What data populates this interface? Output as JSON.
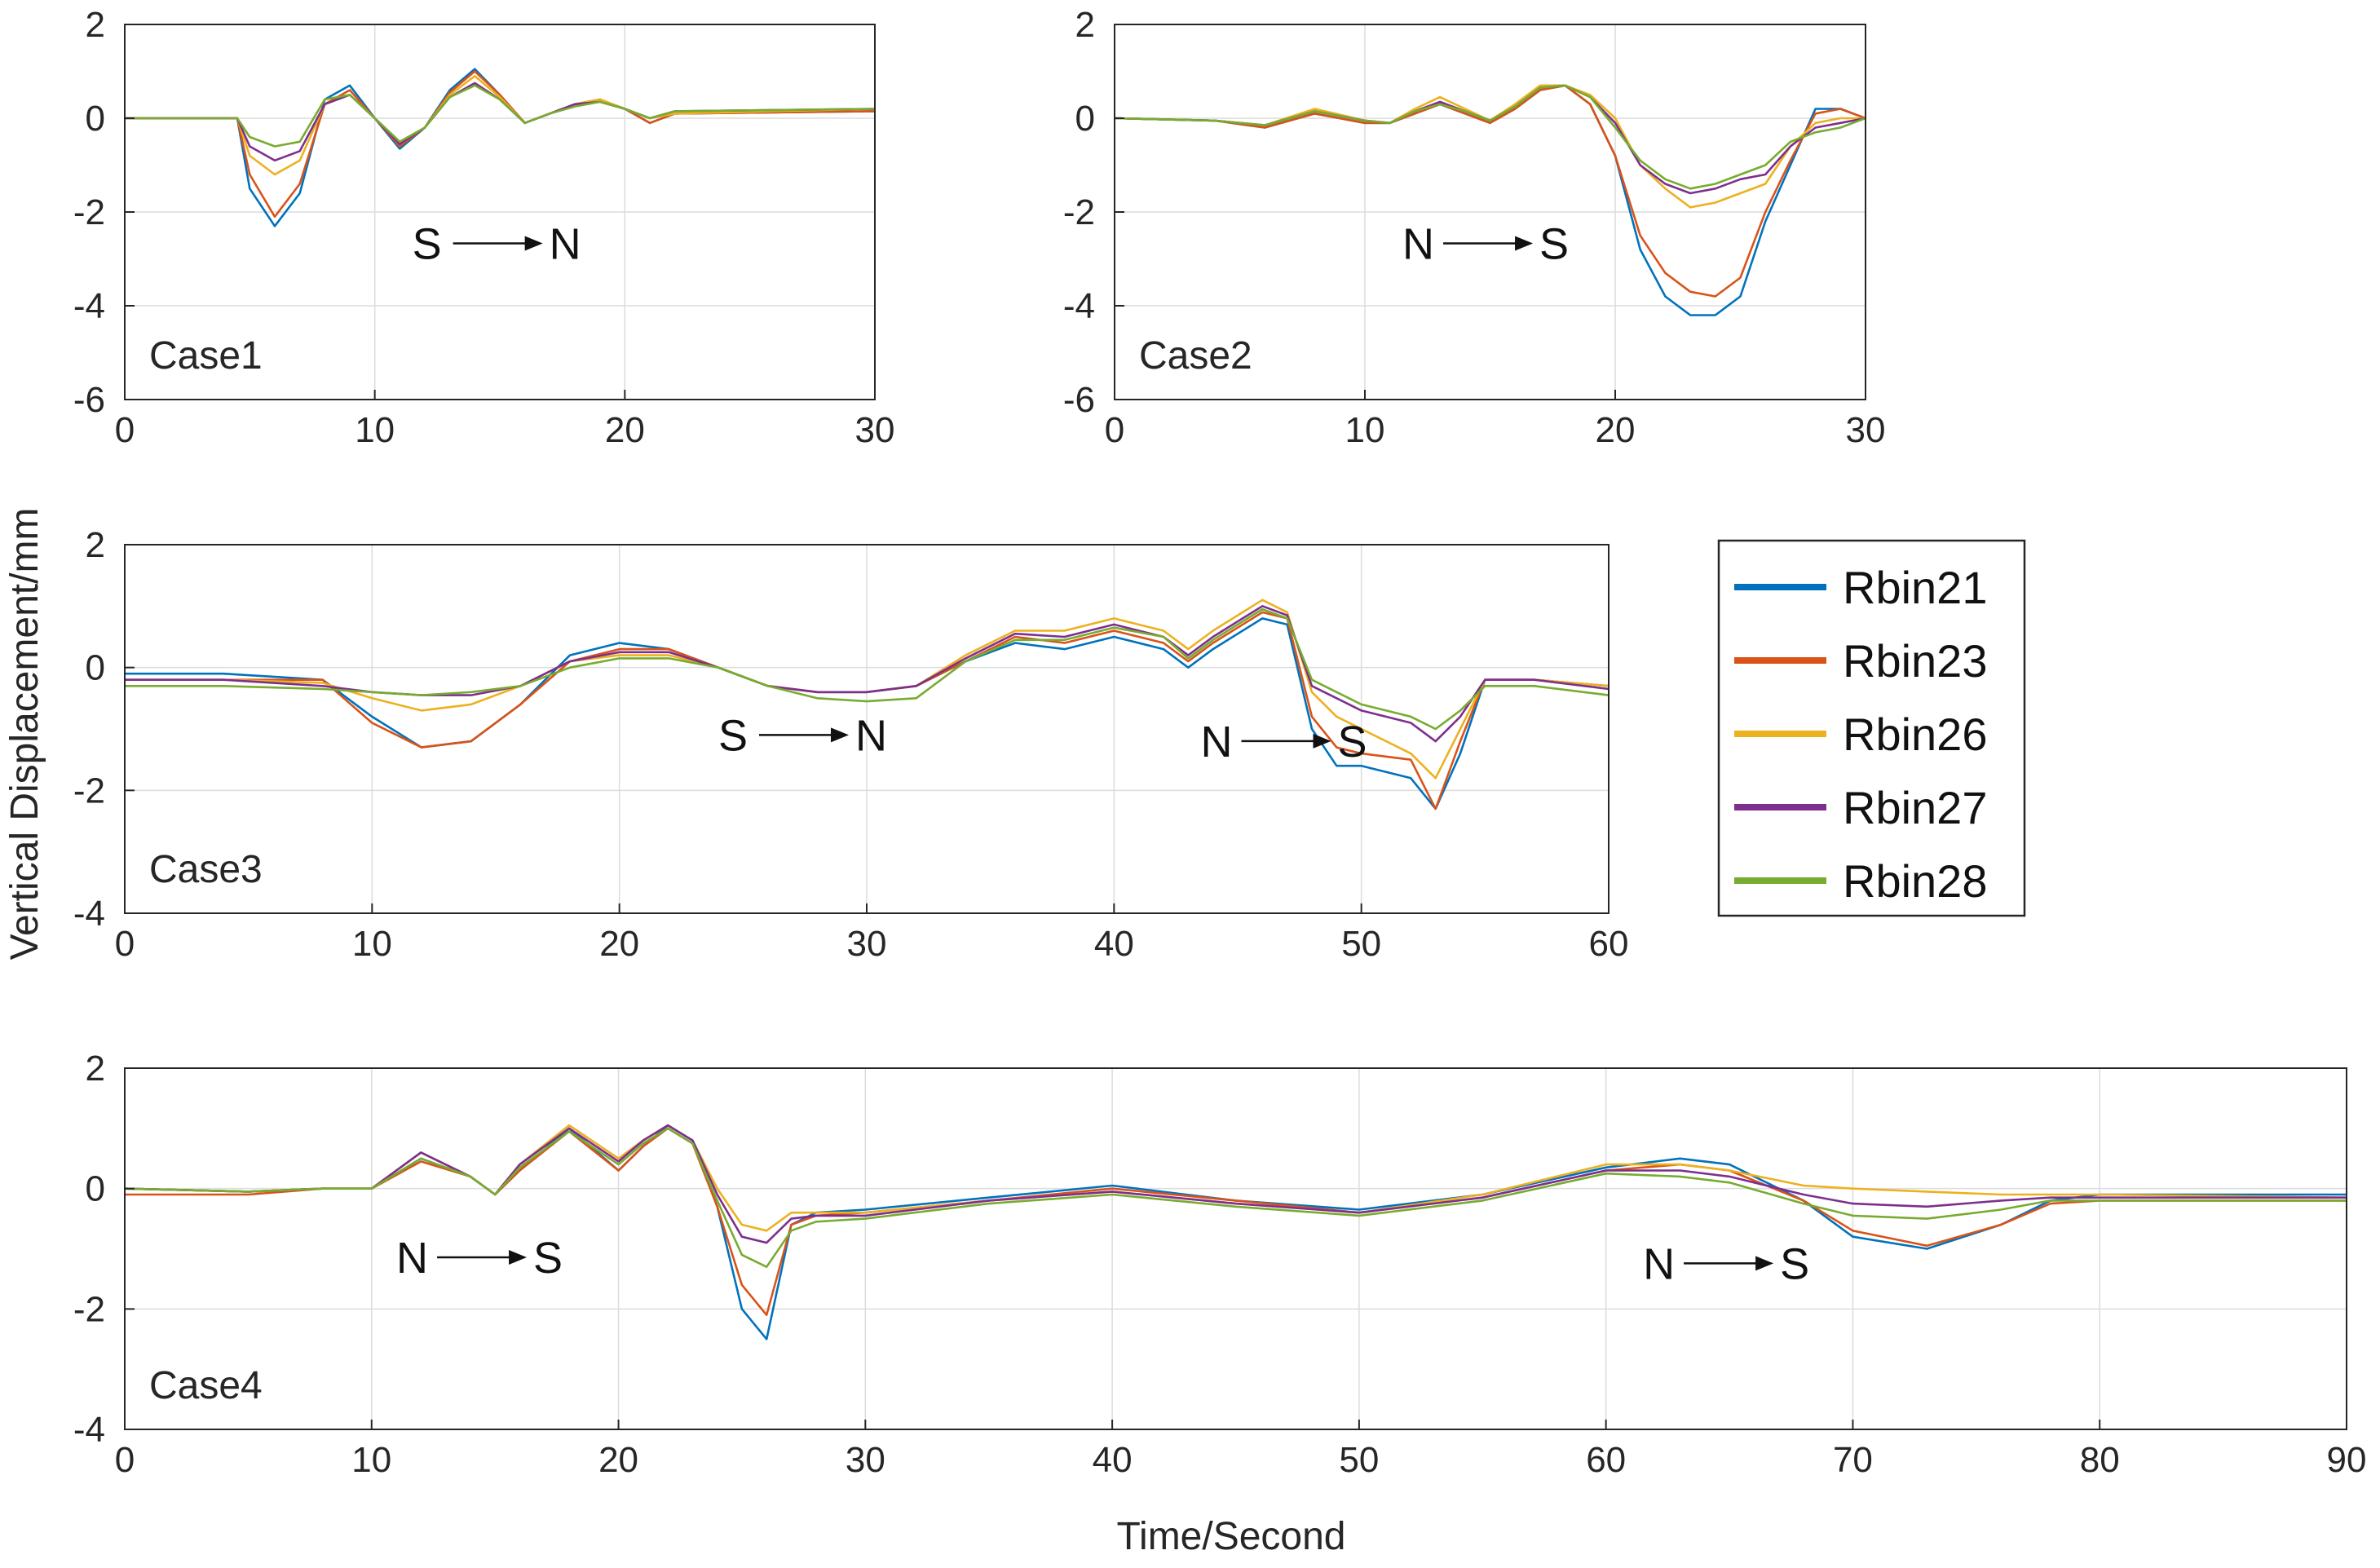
{
  "figure": {
    "ylabel": "Vertical Displacement/mm",
    "xlabel": "Time/Second"
  },
  "chart_data": [
    {
      "type": "line",
      "case_label": "Case1",
      "xlim": [
        0,
        30
      ],
      "ylim": [
        -6,
        2
      ],
      "xticks": [
        0,
        10,
        20,
        30
      ],
      "yticks": [
        -6,
        -4,
        -2,
        0,
        2
      ],
      "grid": true,
      "annotations": [
        {
          "from": "S",
          "to": "N",
          "x": 11.5,
          "y": -3.0
        }
      ],
      "x": [
        0,
        4.5,
        5,
        6,
        7,
        8,
        9,
        10,
        11,
        12,
        13,
        14,
        15,
        16,
        17,
        18,
        19,
        20,
        21,
        22,
        30
      ],
      "series": [
        {
          "name": "Rbin21",
          "values": [
            0,
            0,
            -1.5,
            -2.3,
            -1.6,
            0.4,
            0.7,
            0.0,
            -0.65,
            -0.2,
            0.6,
            1.05,
            0.5,
            -0.1,
            0.1,
            0.3,
            0.4,
            0.2,
            -0.1,
            0.1,
            0.15
          ]
        },
        {
          "name": "Rbin23",
          "values": [
            0,
            0,
            -1.2,
            -2.1,
            -1.4,
            0.3,
            0.6,
            0.0,
            -0.6,
            -0.2,
            0.55,
            1.0,
            0.5,
            -0.1,
            0.1,
            0.3,
            0.4,
            0.2,
            -0.1,
            0.1,
            0.15
          ]
        },
        {
          "name": "Rbin26",
          "values": [
            0,
            0,
            -0.8,
            -1.2,
            -0.9,
            0.3,
            0.5,
            0.0,
            -0.5,
            -0.2,
            0.5,
            0.9,
            0.45,
            -0.1,
            0.1,
            0.3,
            0.4,
            0.2,
            0.0,
            0.1,
            0.2
          ]
        },
        {
          "name": "Rbin27",
          "values": [
            0,
            0,
            -0.6,
            -0.9,
            -0.7,
            0.3,
            0.5,
            0.0,
            -0.55,
            -0.2,
            0.45,
            0.75,
            0.4,
            -0.1,
            0.1,
            0.3,
            0.35,
            0.2,
            0.0,
            0.15,
            0.2
          ]
        },
        {
          "name": "Rbin28",
          "values": [
            0,
            0,
            -0.4,
            -0.6,
            -0.5,
            0.4,
            0.5,
            0.0,
            -0.5,
            -0.2,
            0.45,
            0.7,
            0.4,
            -0.1,
            0.1,
            0.25,
            0.35,
            0.2,
            0.0,
            0.15,
            0.2
          ]
        }
      ]
    },
    {
      "type": "line",
      "case_label": "Case2",
      "xlim": [
        0,
        30
      ],
      "ylim": [
        -6,
        2
      ],
      "xticks": [
        0,
        10,
        20,
        30
      ],
      "yticks": [
        -6,
        -4,
        -2,
        0,
        2
      ],
      "grid": true,
      "annotations": [
        {
          "from": "N",
          "to": "S",
          "x": 11.5,
          "y": -3.0
        }
      ],
      "x": [
        0,
        4,
        6,
        8,
        10,
        11,
        12,
        13,
        14,
        15,
        16,
        17,
        18,
        19,
        20,
        21,
        22,
        23,
        24,
        25,
        26,
        27,
        28,
        29,
        30
      ],
      "series": [
        {
          "name": "Rbin21",
          "values": [
            0,
            -0.05,
            -0.2,
            0.1,
            -0.1,
            -0.1,
            0.1,
            0.3,
            0.1,
            -0.1,
            0.2,
            0.6,
            0.7,
            0.3,
            -0.8,
            -2.8,
            -3.8,
            -4.2,
            -4.2,
            -3.8,
            -2.2,
            -1.0,
            0.2,
            0.2,
            0.0
          ]
        },
        {
          "name": "Rbin23",
          "values": [
            0,
            -0.05,
            -0.2,
            0.1,
            -0.1,
            -0.1,
            0.1,
            0.3,
            0.1,
            -0.1,
            0.2,
            0.6,
            0.7,
            0.3,
            -0.8,
            -2.5,
            -3.3,
            -3.7,
            -3.8,
            -3.4,
            -2.0,
            -0.9,
            0.1,
            0.2,
            0.0
          ]
        },
        {
          "name": "Rbin26",
          "values": [
            0,
            -0.05,
            -0.15,
            0.2,
            -0.05,
            -0.1,
            0.2,
            0.45,
            0.2,
            -0.05,
            0.3,
            0.7,
            0.7,
            0.5,
            0.0,
            -1.0,
            -1.5,
            -1.9,
            -1.8,
            -1.6,
            -1.4,
            -0.6,
            -0.1,
            0.0,
            0.0
          ]
        },
        {
          "name": "Rbin27",
          "values": [
            0,
            -0.05,
            -0.15,
            0.15,
            -0.05,
            -0.1,
            0.15,
            0.35,
            0.15,
            -0.05,
            0.25,
            0.65,
            0.7,
            0.45,
            -0.1,
            -1.0,
            -1.4,
            -1.6,
            -1.5,
            -1.3,
            -1.2,
            -0.6,
            -0.2,
            -0.1,
            0.0
          ]
        },
        {
          "name": "Rbin28",
          "values": [
            0,
            -0.05,
            -0.15,
            0.15,
            -0.05,
            -0.1,
            0.15,
            0.3,
            0.15,
            -0.05,
            0.25,
            0.65,
            0.7,
            0.45,
            -0.2,
            -0.9,
            -1.3,
            -1.5,
            -1.4,
            -1.2,
            -1.0,
            -0.5,
            -0.3,
            -0.2,
            0.0
          ]
        }
      ]
    },
    {
      "type": "line",
      "case_label": "Case3",
      "xlim": [
        0,
        60
      ],
      "ylim": [
        -4,
        2
      ],
      "xticks": [
        0,
        10,
        20,
        30,
        40,
        50,
        60
      ],
      "yticks": [
        -4,
        -2,
        0,
        2
      ],
      "grid": true,
      "annotations": [
        {
          "from": "S",
          "to": "N",
          "x": 24.0,
          "y": -1.35
        },
        {
          "from": "N",
          "to": "S",
          "x": 43.5,
          "y": -1.45
        }
      ],
      "x": [
        0,
        4,
        8,
        10,
        12,
        14,
        16,
        18,
        20,
        22,
        24,
        26,
        28,
        30,
        32,
        34,
        36,
        38,
        40,
        42,
        43,
        44,
        46,
        47,
        48,
        49,
        50,
        52,
        53,
        54,
        55,
        57,
        60
      ],
      "series": [
        {
          "name": "Rbin21",
          "values": [
            -0.1,
            -0.1,
            -0.2,
            -0.8,
            -1.3,
            -1.2,
            -0.6,
            0.2,
            0.4,
            0.3,
            0.0,
            -0.3,
            -0.4,
            -0.4,
            -0.3,
            0.1,
            0.4,
            0.3,
            0.5,
            0.3,
            0.0,
            0.3,
            0.8,
            0.7,
            -1.0,
            -1.6,
            -1.6,
            -1.8,
            -2.3,
            -1.4,
            -0.2,
            -0.2,
            -0.3
          ]
        },
        {
          "name": "Rbin23",
          "values": [
            -0.2,
            -0.2,
            -0.2,
            -0.9,
            -1.3,
            -1.2,
            -0.6,
            0.1,
            0.3,
            0.3,
            0.0,
            -0.3,
            -0.4,
            -0.4,
            -0.3,
            0.1,
            0.5,
            0.4,
            0.6,
            0.4,
            0.1,
            0.4,
            0.9,
            0.8,
            -0.8,
            -1.3,
            -1.4,
            -1.5,
            -2.3,
            -1.2,
            -0.2,
            -0.2,
            -0.3
          ]
        },
        {
          "name": "Rbin26",
          "values": [
            -0.2,
            -0.2,
            -0.25,
            -0.5,
            -0.7,
            -0.6,
            -0.3,
            0.1,
            0.2,
            0.2,
            0.0,
            -0.3,
            -0.4,
            -0.4,
            -0.3,
            0.2,
            0.6,
            0.6,
            0.8,
            0.6,
            0.3,
            0.6,
            1.1,
            0.9,
            -0.4,
            -0.8,
            -1.0,
            -1.4,
            -1.8,
            -1.0,
            -0.2,
            -0.2,
            -0.3
          ]
        },
        {
          "name": "Rbin27",
          "values": [
            -0.2,
            -0.2,
            -0.3,
            -0.4,
            -0.45,
            -0.45,
            -0.3,
            0.1,
            0.25,
            0.25,
            0.0,
            -0.3,
            -0.4,
            -0.4,
            -0.3,
            0.15,
            0.55,
            0.5,
            0.7,
            0.5,
            0.2,
            0.5,
            1.0,
            0.85,
            -0.3,
            -0.5,
            -0.7,
            -0.9,
            -1.2,
            -0.8,
            -0.2,
            -0.2,
            -0.35
          ]
        },
        {
          "name": "Rbin28",
          "values": [
            -0.3,
            -0.3,
            -0.35,
            -0.4,
            -0.45,
            -0.4,
            -0.3,
            0.0,
            0.15,
            0.15,
            0.0,
            -0.3,
            -0.5,
            -0.55,
            -0.5,
            0.1,
            0.45,
            0.45,
            0.65,
            0.5,
            0.15,
            0.45,
            0.95,
            0.8,
            -0.2,
            -0.4,
            -0.6,
            -0.8,
            -1.0,
            -0.7,
            -0.3,
            -0.3,
            -0.45
          ]
        }
      ]
    },
    {
      "type": "line",
      "case_label": "Case4",
      "xlim": [
        0,
        90
      ],
      "ylim": [
        -4,
        2
      ],
      "xticks": [
        0,
        10,
        20,
        30,
        40,
        50,
        60,
        70,
        80,
        90
      ],
      "yticks": [
        -4,
        -2,
        0,
        2
      ],
      "grid": true,
      "annotations": [
        {
          "from": "N",
          "to": "S",
          "x": 11.0,
          "y": -1.4
        },
        {
          "from": "N",
          "to": "S",
          "x": 61.5,
          "y": -1.5
        }
      ],
      "x": [
        0,
        5,
        8,
        10,
        12,
        14,
        15,
        16,
        18,
        20,
        21,
        22,
        23,
        24,
        25,
        26,
        27,
        28,
        30,
        35,
        40,
        45,
        50,
        55,
        60,
        63,
        65,
        68,
        70,
        73,
        76,
        78,
        80,
        90
      ],
      "series": [
        {
          "name": "Rbin21",
          "values": [
            0.0,
            -0.05,
            0.0,
            0.0,
            0.5,
            0.2,
            -0.1,
            0.3,
            1.0,
            0.3,
            0.7,
            1.05,
            0.8,
            -0.3,
            -2.0,
            -2.5,
            -0.6,
            -0.4,
            -0.35,
            -0.15,
            0.05,
            -0.2,
            -0.35,
            -0.1,
            0.35,
            0.5,
            0.4,
            -0.2,
            -0.8,
            -1.0,
            -0.6,
            -0.2,
            -0.1,
            -0.1
          ]
        },
        {
          "name": "Rbin23",
          "values": [
            -0.1,
            -0.1,
            0.0,
            0.0,
            0.45,
            0.2,
            -0.1,
            0.3,
            0.95,
            0.3,
            0.7,
            1.0,
            0.75,
            -0.3,
            -1.6,
            -2.1,
            -0.6,
            -0.45,
            -0.4,
            -0.2,
            0.0,
            -0.2,
            -0.4,
            -0.15,
            0.3,
            0.4,
            0.3,
            -0.2,
            -0.7,
            -0.95,
            -0.6,
            -0.25,
            -0.2,
            -0.2
          ]
        },
        {
          "name": "Rbin26",
          "values": [
            0.0,
            -0.05,
            0.0,
            0.0,
            0.6,
            0.2,
            -0.1,
            0.4,
            1.05,
            0.5,
            0.8,
            1.05,
            0.8,
            0.0,
            -0.6,
            -0.7,
            -0.4,
            -0.4,
            -0.4,
            -0.2,
            -0.05,
            -0.25,
            -0.4,
            -0.1,
            0.4,
            0.4,
            0.3,
            0.05,
            0.0,
            -0.05,
            -0.1,
            -0.1,
            -0.1,
            -0.15
          ]
        },
        {
          "name": "Rbin27",
          "values": [
            0.0,
            -0.05,
            0.0,
            0.0,
            0.6,
            0.2,
            -0.1,
            0.4,
            1.0,
            0.45,
            0.8,
            1.05,
            0.8,
            -0.1,
            -0.8,
            -0.9,
            -0.5,
            -0.45,
            -0.45,
            -0.2,
            -0.05,
            -0.25,
            -0.4,
            -0.15,
            0.3,
            0.3,
            0.2,
            -0.1,
            -0.25,
            -0.3,
            -0.2,
            -0.15,
            -0.15,
            -0.15
          ]
        },
        {
          "name": "Rbin28",
          "values": [
            0.0,
            -0.05,
            0.0,
            0.0,
            0.5,
            0.2,
            -0.1,
            0.35,
            0.95,
            0.4,
            0.75,
            1.0,
            0.75,
            -0.2,
            -1.1,
            -1.3,
            -0.7,
            -0.55,
            -0.5,
            -0.25,
            -0.1,
            -0.3,
            -0.45,
            -0.2,
            0.25,
            0.2,
            0.1,
            -0.25,
            -0.45,
            -0.5,
            -0.35,
            -0.2,
            -0.2,
            -0.2
          ]
        }
      ]
    }
  ],
  "legend": {
    "placement": "right",
    "items": [
      {
        "name": "Rbin21",
        "color": "#0072BD"
      },
      {
        "name": "Rbin23",
        "color": "#D95319"
      },
      {
        "name": "Rbin26",
        "color": "#EDB120"
      },
      {
        "name": "Rbin27",
        "color": "#7E2F8E"
      },
      {
        "name": "Rbin28",
        "color": "#77AC30"
      }
    ]
  }
}
